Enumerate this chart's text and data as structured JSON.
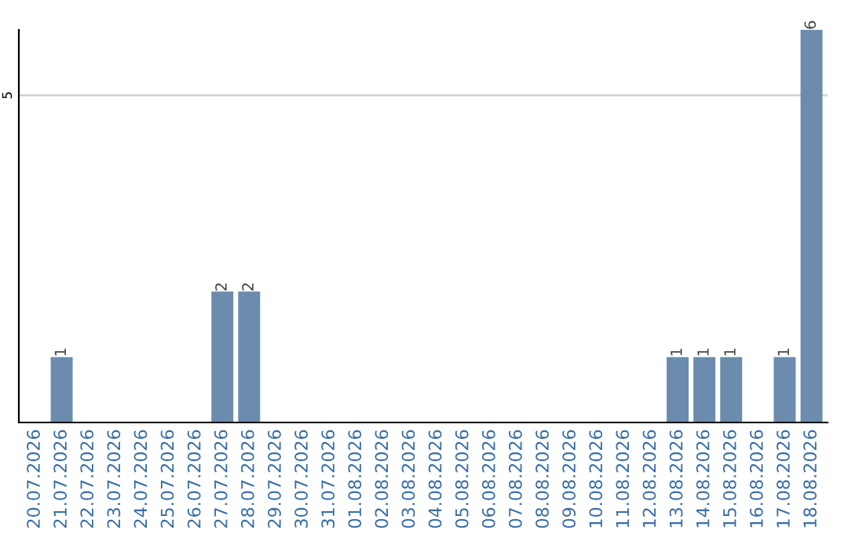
{
  "chart_data": {
    "type": "bar",
    "categories": [
      "20.07.2026",
      "21.07.2026",
      "22.07.2026",
      "23.07.2026",
      "24.07.2026",
      "25.07.2026",
      "26.07.2026",
      "27.07.2026",
      "28.07.2026",
      "29.07.2026",
      "30.07.2026",
      "31.07.2026",
      "01.08.2026",
      "02.08.2026",
      "03.08.2026",
      "04.08.2026",
      "05.08.2026",
      "06.08.2026",
      "07.08.2026",
      "08.08.2026",
      "09.08.2026",
      "10.08.2026",
      "11.08.2026",
      "12.08.2026",
      "13.08.2026",
      "14.08.2026",
      "15.08.2026",
      "16.08.2026",
      "17.08.2026",
      "18.08.2026"
    ],
    "values": [
      0,
      1,
      0,
      0,
      0,
      0,
      0,
      2,
      2,
      0,
      0,
      0,
      0,
      0,
      0,
      0,
      0,
      0,
      0,
      0,
      0,
      0,
      0,
      0,
      1,
      1,
      1,
      0,
      1,
      6
    ],
    "value_labels": [
      null,
      "1",
      null,
      null,
      null,
      null,
      null,
      "2",
      "2",
      null,
      null,
      null,
      null,
      null,
      null,
      null,
      null,
      null,
      null,
      null,
      null,
      null,
      null,
      null,
      "1",
      "1",
      "1",
      null,
      "1",
      "6"
    ],
    "color": "#6b8cad",
    "ylim": [
      0,
      6
    ],
    "yticks": [
      5
    ],
    "grid": "y"
  }
}
